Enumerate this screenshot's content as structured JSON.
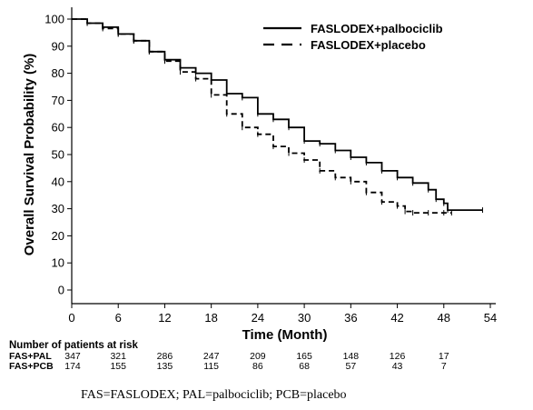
{
  "chart_data": {
    "type": "line",
    "title": "",
    "xlabel": "Time (Month)",
    "ylabel": "Overall Survival Probability (%)",
    "xlim": [
      0,
      54
    ],
    "ylim": [
      0,
      100
    ],
    "xticks": [
      0,
      6,
      12,
      18,
      24,
      30,
      36,
      42,
      48,
      54
    ],
    "yticks": [
      0,
      10,
      20,
      30,
      40,
      50,
      60,
      70,
      80,
      90,
      100
    ],
    "grid": false,
    "legend_position": "top-right",
    "series": [
      {
        "name": "FASLODEX+palbociclib",
        "line_style": "solid",
        "x": [
          0,
          2,
          4,
          6,
          8,
          10,
          12,
          14,
          16,
          18,
          20,
          22,
          24,
          26,
          28,
          30,
          32,
          34,
          36,
          38,
          40,
          42,
          44,
          46,
          47,
          48,
          48.5,
          53
        ],
        "y": [
          100,
          98.5,
          97,
          94.5,
          92,
          88,
          85,
          82,
          80,
          77.5,
          72.5,
          71,
          65,
          63,
          60,
          55,
          54,
          51.5,
          49,
          47,
          44,
          41.5,
          39.5,
          37,
          33.5,
          32,
          29.5,
          29.5
        ]
      },
      {
        "name": "FASLODEX+placebo",
        "line_style": "dashed",
        "x": [
          0,
          2,
          4,
          6,
          8,
          10,
          12,
          14,
          16,
          18,
          20,
          22,
          24,
          26,
          28,
          30,
          32,
          34,
          36,
          38,
          40,
          42,
          43,
          44,
          46,
          48,
          49
        ],
        "y": [
          100,
          98.5,
          96.5,
          94.5,
          92,
          88,
          84.5,
          80.5,
          78,
          72,
          65,
          60,
          57.5,
          53,
          50.5,
          48,
          44,
          41.5,
          40,
          36,
          32.5,
          31,
          29,
          28.5,
          28.5,
          28.5,
          28.5
        ]
      }
    ],
    "risk_table": {
      "title": "Number of patients at risk",
      "time_points": [
        0,
        6,
        12,
        18,
        24,
        30,
        36,
        42,
        48
      ],
      "rows": [
        {
          "label": "FAS+PAL",
          "values": [
            "347",
            "321",
            "286",
            "247",
            "209",
            "165",
            "148",
            "126",
            "17"
          ]
        },
        {
          "label": "FAS+PCB",
          "values": [
            "174",
            "155",
            "135",
            "115",
            "86",
            "68",
            "57",
            "43",
            "7"
          ]
        }
      ]
    },
    "footnote": "FAS=FASLODEX; PAL=palbociclib; PCB=placebo"
  }
}
